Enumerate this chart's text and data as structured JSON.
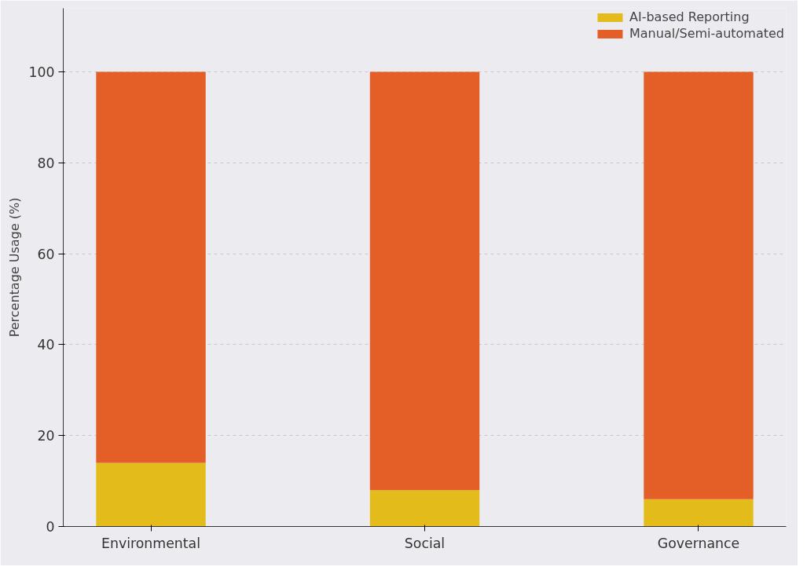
{
  "chart_data": {
    "type": "bar",
    "stacked": true,
    "ylabel": "Percentage Usage (%)",
    "categories": [
      "Environmental",
      "Social",
      "Governance"
    ],
    "series": [
      {
        "name": "AI-based Reporting",
        "color": "#e3bc1c",
        "values": [
          14,
          8,
          6
        ]
      },
      {
        "name": "Manual/Semi-automated",
        "color": "#e45f28",
        "values": [
          86,
          92,
          94
        ]
      }
    ],
    "ylim": [
      0,
      114
    ],
    "yticks": [
      0,
      20,
      40,
      60,
      80,
      100
    ],
    "grid": "y",
    "legend": "top right"
  }
}
